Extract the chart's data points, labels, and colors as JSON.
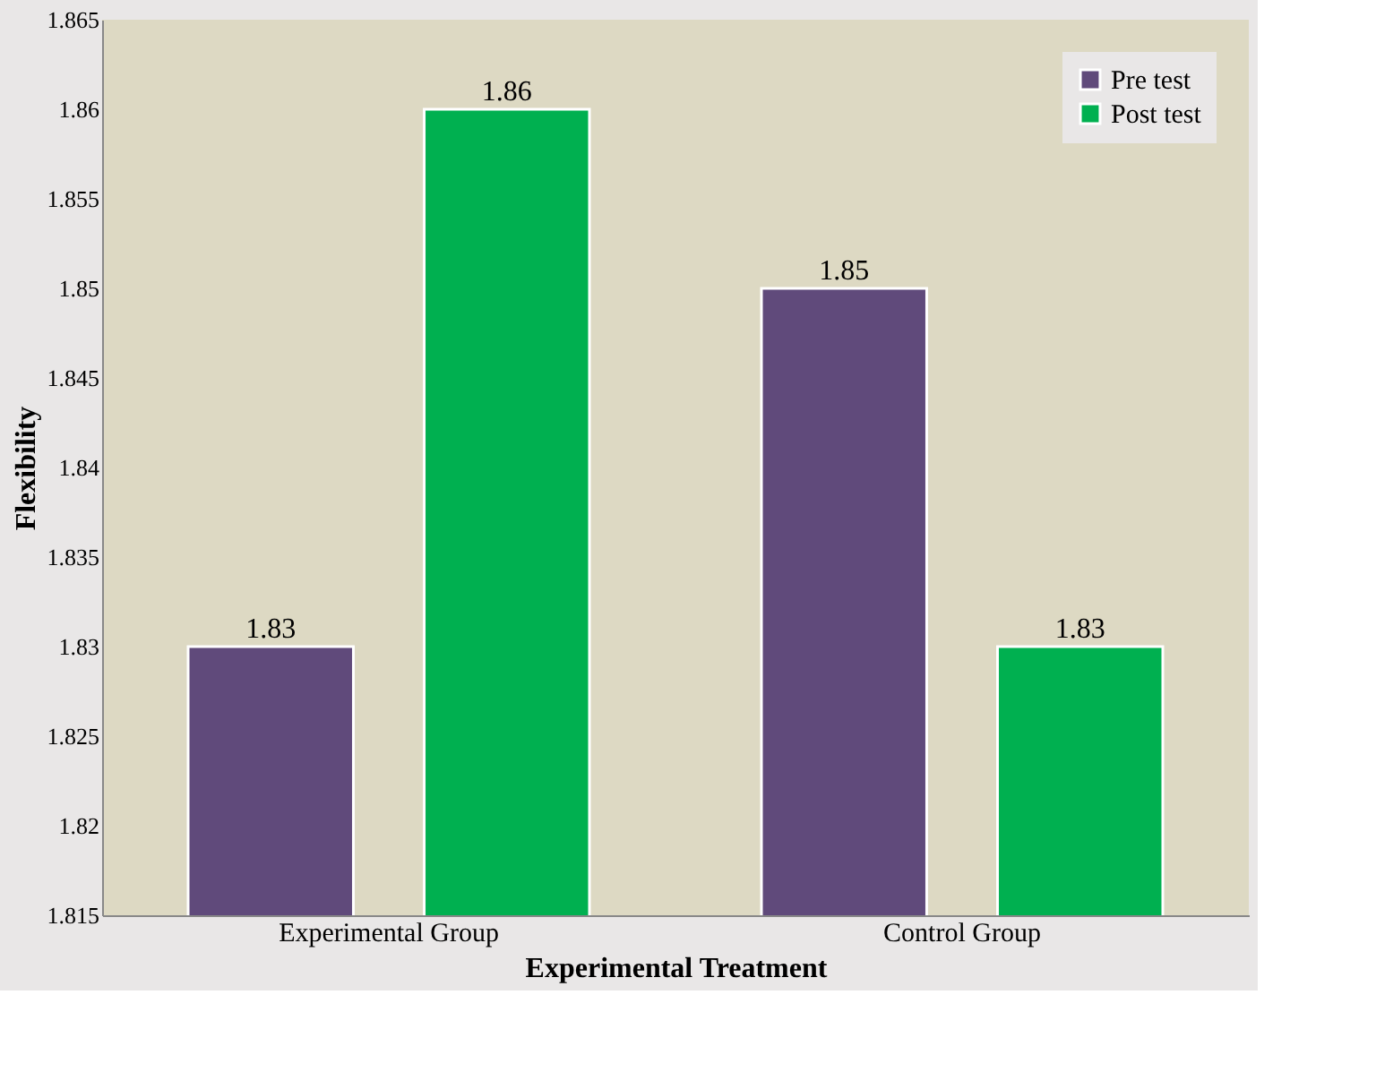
{
  "chart_data": {
    "type": "bar",
    "xlabel": "Experimental Treatment",
    "ylabel": "Flexibility",
    "categories": [
      "Experimental Group",
      "Control Group"
    ],
    "series": [
      {
        "name": "Pre test",
        "color": "#604a7b",
        "values": [
          1.83,
          1.85
        ]
      },
      {
        "name": "Post test",
        "color": "#00b050",
        "values": [
          1.86,
          1.83
        ]
      }
    ],
    "ylim": [
      1.815,
      1.865
    ],
    "yticks": [
      1.815,
      1.82,
      1.825,
      1.83,
      1.835,
      1.84,
      1.845,
      1.85,
      1.855,
      1.86,
      1.865
    ],
    "data_labels": true,
    "grid": false,
    "legend": "top right"
  }
}
